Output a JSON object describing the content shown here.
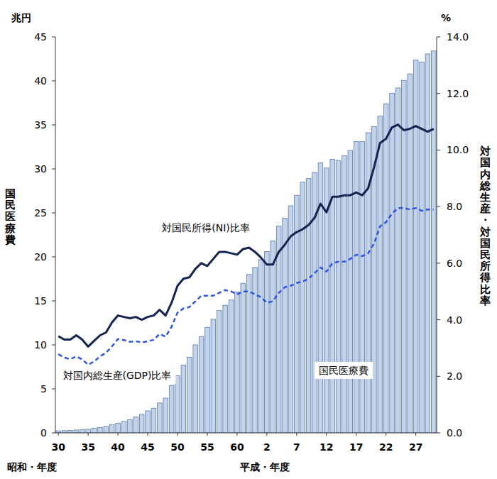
{
  "chart_data": {
    "type": "bar",
    "categories": [
      "30",
      null,
      null,
      null,
      null,
      "35",
      null,
      null,
      null,
      null,
      "40",
      null,
      null,
      null,
      null,
      "45",
      null,
      null,
      null,
      null,
      "50",
      null,
      null,
      null,
      null,
      "55",
      null,
      null,
      null,
      null,
      "60",
      null,
      null,
      null,
      null,
      "2",
      null,
      null,
      null,
      null,
      "7",
      null,
      null,
      null,
      null,
      "12",
      null,
      null,
      null,
      null,
      "17",
      null,
      null,
      null,
      null,
      "22",
      null,
      null,
      null,
      null,
      "27",
      null,
      null,
      null
    ],
    "xlabels": [
      "昭和・年度",
      "平成・年度"
    ],
    "ylabel": "国民医療費",
    "yunit": "兆円",
    "y2label": "対国内総生産・対国民所得比率",
    "y2unit": "%",
    "ylim": [
      0,
      45
    ],
    "yticks": [
      0,
      5,
      10,
      15,
      20,
      25,
      30,
      35,
      40,
      45
    ],
    "y2lim": [
      0,
      14
    ],
    "y2ticks": [
      {
        "value": 0,
        "label": "0.0"
      },
      {
        "value": 2,
        "label": "2.0"
      },
      {
        "value": 4,
        "label": "4.0"
      },
      {
        "value": 6,
        "label": "6.0"
      },
      {
        "value": 8,
        "label": "8.0"
      },
      {
        "value": 10,
        "label": "10.0"
      },
      {
        "value": 12,
        "label": "12.0"
      },
      {
        "value": 14,
        "label": "14.0"
      }
    ],
    "grid": false,
    "series": [
      {
        "name": "国民医療費",
        "type": "bar",
        "color": "#c3d3ea",
        "values": [
          0.24,
          0.26,
          0.29,
          0.33,
          0.36,
          0.41,
          0.52,
          0.61,
          0.75,
          0.94,
          1.1,
          1.3,
          1.5,
          1.8,
          2.1,
          2.5,
          2.8,
          3.4,
          3.95,
          5.4,
          6.5,
          7.7,
          8.6,
          10.0,
          10.95,
          12.0,
          12.9,
          13.9,
          14.5,
          15.1,
          16.0,
          17.0,
          18.0,
          18.8,
          19.7,
          20.6,
          21.8,
          23.5,
          24.4,
          25.8,
          27.0,
          28.5,
          28.9,
          29.6,
          30.7,
          30.1,
          31.1,
          30.95,
          31.5,
          32.1,
          33.1,
          33.1,
          34.1,
          34.8,
          36.0,
          37.4,
          38.6,
          39.2,
          40.06,
          40.8,
          42.36,
          42.14,
          43.07,
          43.4
        ]
      },
      {
        "name": "対国民所得(NI)比率",
        "type": "line",
        "axis": "y2",
        "color": "#14234f",
        "line_style": "solid",
        "values": [
          3.42,
          3.3,
          3.3,
          3.45,
          3.3,
          3.05,
          3.25,
          3.45,
          3.55,
          3.9,
          4.15,
          4.1,
          4.05,
          4.1,
          4.0,
          4.1,
          4.15,
          4.35,
          4.15,
          4.6,
          5.2,
          5.45,
          5.5,
          5.8,
          6.0,
          5.9,
          6.15,
          6.4,
          6.4,
          6.35,
          6.3,
          6.5,
          6.55,
          6.4,
          6.2,
          5.95,
          5.95,
          6.4,
          6.65,
          6.95,
          7.1,
          7.2,
          7.35,
          7.6,
          8.1,
          7.8,
          8.35,
          8.35,
          8.4,
          8.4,
          8.5,
          8.4,
          8.65,
          9.4,
          10.25,
          10.4,
          10.8,
          10.9,
          10.7,
          10.75,
          10.85,
          10.75,
          10.65,
          10.75
        ]
      },
      {
        "name": "対国内総生産(GDP)比率",
        "type": "line",
        "axis": "y2",
        "color": "#2f55e0",
        "line_style": "dashed",
        "values": [
          2.78,
          2.66,
          2.61,
          2.7,
          2.6,
          2.41,
          2.52,
          2.71,
          2.83,
          3.06,
          3.32,
          3.28,
          3.22,
          3.24,
          3.2,
          3.24,
          3.29,
          3.5,
          3.4,
          3.75,
          4.25,
          4.4,
          4.45,
          4.65,
          4.85,
          4.85,
          4.85,
          4.95,
          5.05,
          5.0,
          4.9,
          5.0,
          5.0,
          4.9,
          4.8,
          4.6,
          4.65,
          4.95,
          5.15,
          5.2,
          5.3,
          5.35,
          5.45,
          5.65,
          5.85,
          5.7,
          6.0,
          6.05,
          6.05,
          6.15,
          6.3,
          6.25,
          6.35,
          6.7,
          7.3,
          7.45,
          7.75,
          7.95,
          7.95,
          7.9,
          7.95,
          7.85,
          7.9,
          7.9
        ]
      }
    ]
  }
}
